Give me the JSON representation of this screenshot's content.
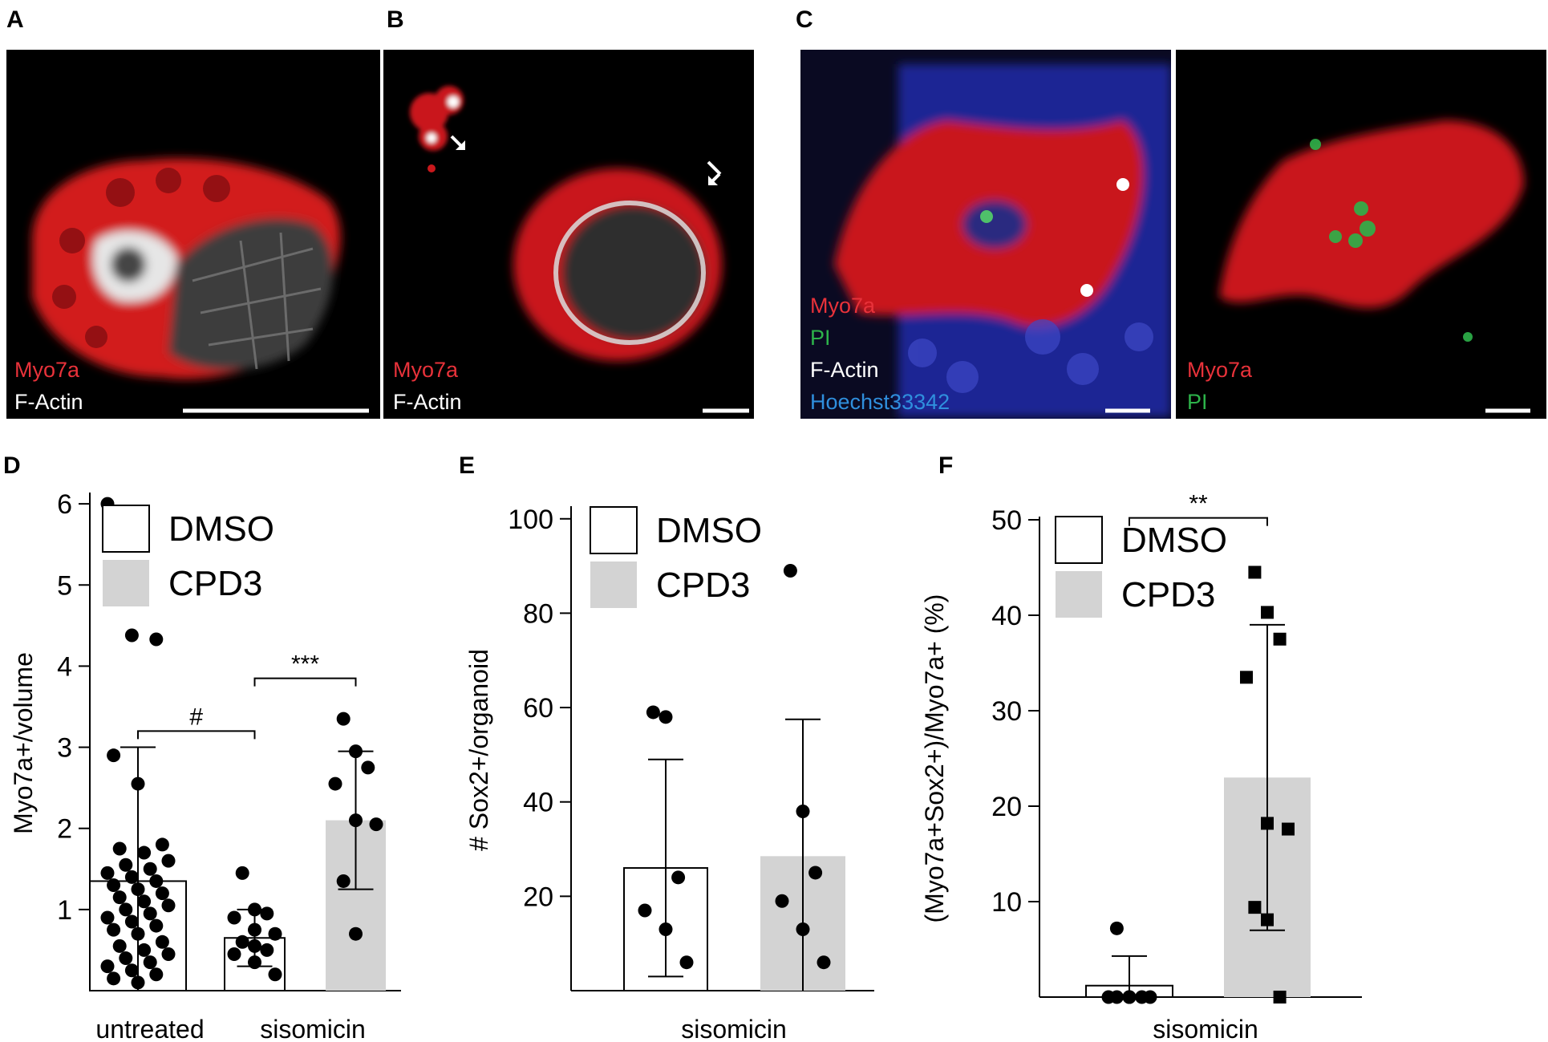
{
  "panel_letters": {
    "a": "A",
    "b": "B",
    "c": "C",
    "d": "D",
    "e": "E",
    "f": "F"
  },
  "micrographs": {
    "A": {
      "labels": [
        "Myo7a",
        "F-Actin"
      ],
      "label_colors": [
        "#e8323a",
        "#ffffff"
      ]
    },
    "B": {
      "labels": [
        "Myo7a",
        "F-Actin"
      ],
      "label_colors": [
        "#e8323a",
        "#ffffff"
      ]
    },
    "C_left": {
      "labels": [
        "Myo7a",
        "PI",
        "F-Actin",
        "Hoechst33342"
      ],
      "label_colors": [
        "#e8323a",
        "#2db34a",
        "#ffffff",
        "#2f8fdd"
      ]
    },
    "C_right": {
      "labels": [
        "Myo7a",
        "PI"
      ],
      "label_colors": [
        "#e8323a",
        "#2db34a"
      ]
    }
  },
  "colors": {
    "dmso_fill": "#ffffff",
    "cpd3_fill": "#d3d3d3",
    "marker": "#000000"
  },
  "chart_data": [
    {
      "panel": "D",
      "type": "bar",
      "ylabel": "Myo7a+/volume",
      "yticks": [
        "1",
        "2",
        "3",
        "4",
        "5",
        "6"
      ],
      "ylim": [
        0,
        6.1
      ],
      "legend": {
        "position": "top-left",
        "entries": [
          "DMSO",
          "CPD3"
        ]
      },
      "group_labels": [
        "untreated",
        "sisomicin"
      ],
      "bars": [
        {
          "group": "untreated",
          "series": "DMSO",
          "mean": 1.35,
          "err": 1.65,
          "points": [
            6.0,
            4.38,
            4.33,
            2.9,
            2.55,
            1.8,
            1.75,
            1.7,
            1.6,
            1.55,
            1.5,
            1.45,
            1.4,
            1.35,
            1.3,
            1.25,
            1.2,
            1.15,
            1.1,
            1.05,
            1.0,
            0.95,
            0.9,
            0.85,
            0.8,
            0.75,
            0.7,
            0.6,
            0.55,
            0.5,
            0.45,
            0.4,
            0.35,
            0.3,
            0.25,
            0.2,
            0.15,
            0.1
          ]
        },
        {
          "group": "sisomicin",
          "series": "DMSO",
          "mean": 0.65,
          "err": 0.35,
          "points": [
            1.45,
            1.0,
            0.95,
            0.9,
            0.75,
            0.7,
            0.6,
            0.55,
            0.5,
            0.45,
            0.35,
            0.2
          ]
        },
        {
          "group": "sisomicin",
          "series": "CPD3",
          "mean": 2.1,
          "err": 0.85,
          "points": [
            3.35,
            2.95,
            2.75,
            2.55,
            2.1,
            2.05,
            1.35,
            0.7
          ]
        }
      ],
      "annotations": [
        {
          "text": "#",
          "between": [
            0,
            1
          ]
        },
        {
          "text": "***",
          "between": [
            1,
            2
          ]
        }
      ]
    },
    {
      "panel": "E",
      "type": "bar",
      "ylabel": "# Sox2+/organoid",
      "yticks": [
        "20",
        "40",
        "60",
        "80",
        "100"
      ],
      "ylim": [
        0,
        102
      ],
      "legend": {
        "position": "top-left",
        "entries": [
          "DMSO",
          "CPD3"
        ]
      },
      "group_labels": [
        "sisomicin"
      ],
      "bars": [
        {
          "series": "DMSO",
          "mean": 26,
          "err": 23,
          "points": [
            59,
            58,
            24,
            17,
            13,
            6
          ]
        },
        {
          "series": "CPD3",
          "mean": 28.5,
          "err": 29,
          "points": [
            89,
            38,
            25,
            19,
            13,
            6
          ]
        }
      ]
    },
    {
      "panel": "F",
      "type": "bar",
      "ylabel": "(Myo7a+Sox2+)/Myo7a+ (%)",
      "yticks": [
        "10",
        "20",
        "30",
        "40",
        "50"
      ],
      "ylim": [
        0,
        50
      ],
      "legend": {
        "position": "top-left",
        "entries": [
          "DMSO",
          "CPD3"
        ]
      },
      "group_labels": [
        "sisomicin"
      ],
      "bars": [
        {
          "series": "DMSO",
          "mean": 1.2,
          "err": 3.1,
          "marker": "circle",
          "points": [
            7.2,
            0,
            0,
            0,
            0,
            0,
            0,
            0
          ]
        },
        {
          "series": "CPD3",
          "mean": 23,
          "err": 16,
          "marker": "square",
          "points": [
            44.5,
            40.3,
            37.5,
            33.5,
            18.2,
            17.6,
            9.4,
            8.1,
            0
          ]
        }
      ],
      "annotations": [
        {
          "text": "**",
          "between": [
            0,
            1
          ]
        }
      ]
    }
  ]
}
